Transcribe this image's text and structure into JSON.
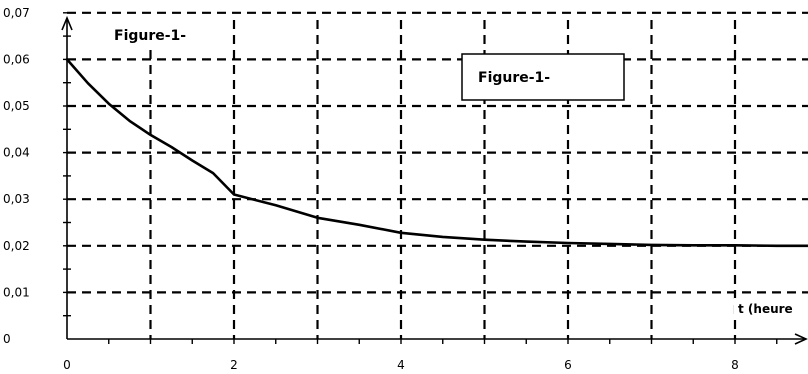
{
  "chart_data": {
    "type": "line",
    "title": "",
    "xlabel": "t (heure",
    "ylabel": "",
    "xlim": [
      0,
      9
    ],
    "ylim": [
      0,
      0.07
    ],
    "x_ticks": [
      "0",
      "2",
      "4",
      "6",
      "8"
    ],
    "y_ticks": [
      "0",
      "0,01",
      "0,02",
      "0,03",
      "0,04",
      "0,05",
      "0,06",
      "0,07"
    ],
    "grid": true,
    "series": [
      {
        "x": [
          0,
          0.25,
          0.5,
          0.75,
          1,
          1.25,
          1.5,
          1.75,
          2,
          2.5,
          3,
          3.5,
          4,
          4.5,
          5,
          5.5,
          6,
          6.5,
          7,
          7.5,
          8,
          8.5,
          9
        ],
        "values": [
          0.06,
          0.0549,
          0.0505,
          0.0468,
          0.0438,
          0.0412,
          0.0383,
          0.0356,
          0.031,
          0.0287,
          0.026,
          0.0245,
          0.0228,
          0.0219,
          0.0213,
          0.0209,
          0.0206,
          0.0204,
          0.0202,
          0.0201,
          0.0201,
          0.02,
          0.02
        ]
      }
    ],
    "annotations": [
      "Figure-1-",
      "Figure-1-"
    ]
  }
}
